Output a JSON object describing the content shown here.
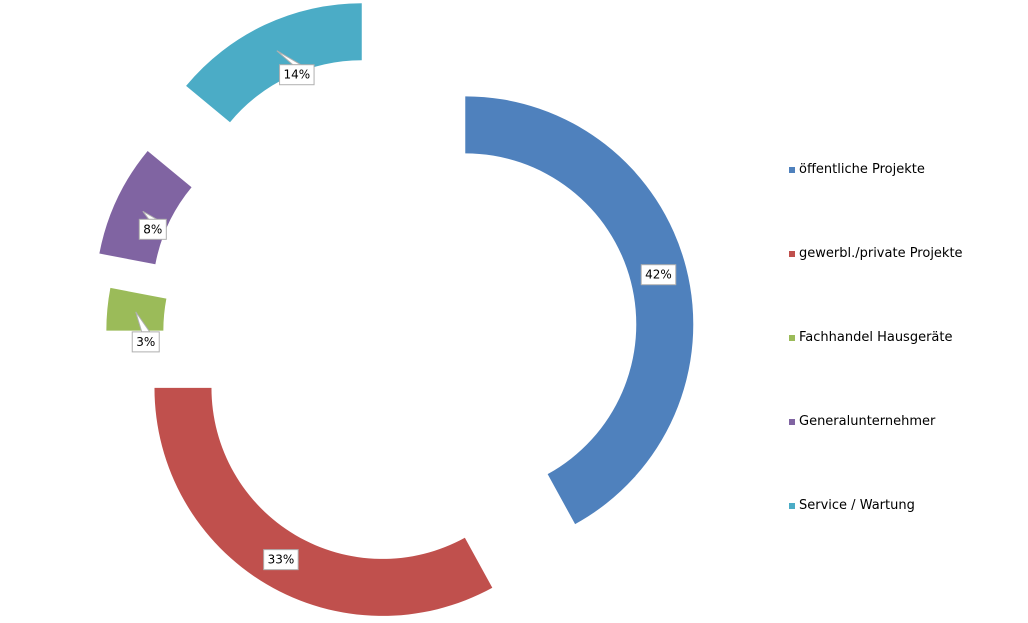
{
  "chart_data": {
    "type": "pie",
    "variant": "exploded-donut",
    "categories": [
      "öffentliche Projekte",
      "gewerbl./private Projekte",
      "Fachhandel Hausgeräte",
      "Generalunternehmer",
      "Service / Wartung"
    ],
    "values": [
      42,
      33,
      3,
      8,
      14
    ],
    "value_labels": [
      "42%",
      "33%",
      "3%",
      "8%",
      "14%"
    ],
    "colors": [
      "#4F81BD",
      "#C0504D",
      "#9BBB59",
      "#8064A2",
      "#4BACC6"
    ],
    "legend_position": "right",
    "title": ""
  }
}
